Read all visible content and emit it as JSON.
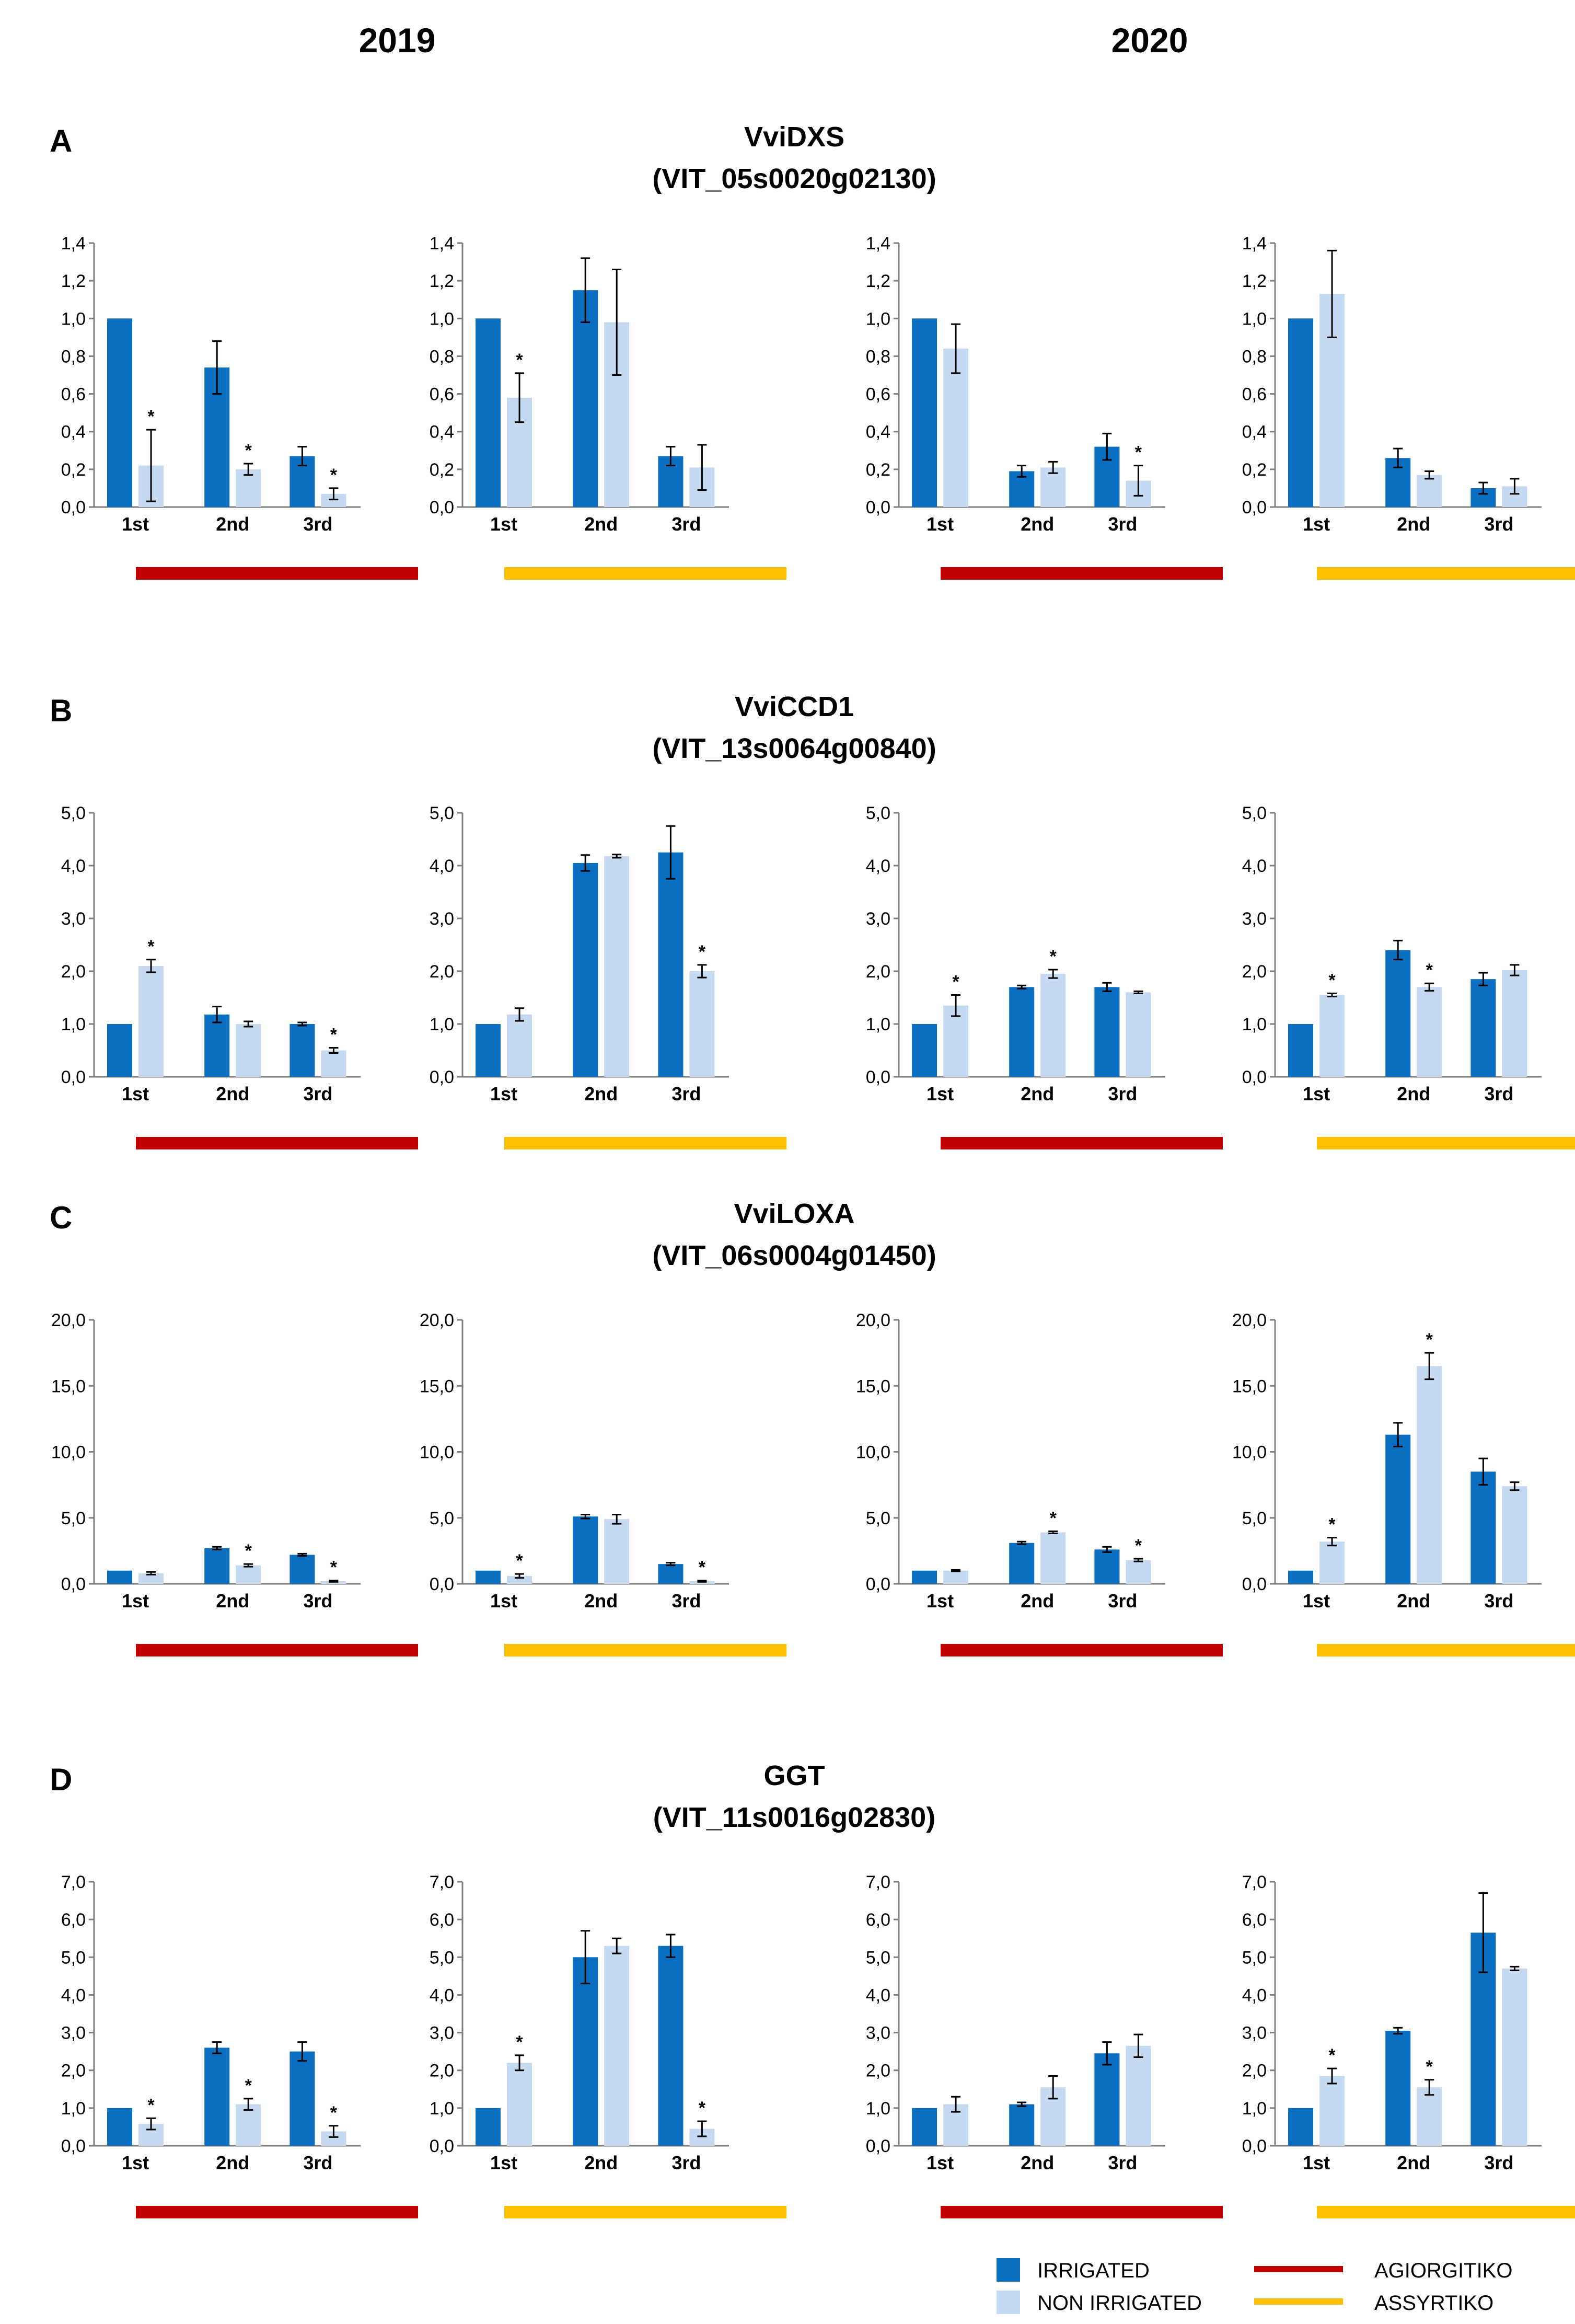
{
  "years": [
    "2019",
    "2020"
  ],
  "colors": {
    "irrigated": "#0a6ec1",
    "non_irrigated": "#c5d9f1",
    "agiorgitiko": "#c00000",
    "assyrtiko": "#ffc000",
    "axis": "#7f7f7f",
    "text": "#000000"
  },
  "legend": {
    "irrigated": "IRRIGATED",
    "non_irrigated": "NON IRRIGATED",
    "agiorgitiko": "AGIORGITIKO",
    "assyrtiko": "ASSYRTIKO"
  },
  "significance_marker": "*",
  "chart_data": [
    {
      "type": "bar",
      "panel": "A",
      "gene": "VviDXS",
      "gene_id": "(VIT_05s0020g02130)",
      "y_ticks": [
        "0,0",
        "0,2",
        "0,4",
        "0,6",
        "0,8",
        "1,0",
        "1,2",
        "1,4"
      ],
      "ylim": [
        0,
        1.4
      ],
      "categories": [
        "1st",
        "2nd",
        "3rd"
      ],
      "charts": [
        {
          "year": "2019",
          "cultivar": "AGIORGITIKO",
          "irrigated": [
            1.0,
            0.74,
            0.27
          ],
          "irrigated_err": [
            0,
            0.14,
            0.05
          ],
          "non_irrigated": [
            0.22,
            0.2,
            0.07
          ],
          "non_irrigated_err": [
            0.19,
            0.03,
            0.03
          ],
          "significant": [
            true,
            true,
            true
          ]
        },
        {
          "year": "2019",
          "cultivar": "ASSYRTIKO",
          "irrigated": [
            1.0,
            1.15,
            0.27
          ],
          "irrigated_err": [
            0,
            0.17,
            0.05
          ],
          "non_irrigated": [
            0.58,
            0.98,
            0.21
          ],
          "non_irrigated_err": [
            0.13,
            0.28,
            0.12
          ],
          "significant": [
            true,
            false,
            false
          ]
        },
        {
          "year": "2020",
          "cultivar": "AGIORGITIKO",
          "irrigated": [
            1.0,
            0.19,
            0.32
          ],
          "irrigated_err": [
            0,
            0.03,
            0.07
          ],
          "non_irrigated": [
            0.84,
            0.21,
            0.14
          ],
          "non_irrigated_err": [
            0.13,
            0.03,
            0.08
          ],
          "significant": [
            false,
            false,
            true
          ]
        },
        {
          "year": "2020",
          "cultivar": "ASSYRTIKO",
          "irrigated": [
            1.0,
            0.26,
            0.1
          ],
          "irrigated_err": [
            0,
            0.05,
            0.03
          ],
          "non_irrigated": [
            1.13,
            0.17,
            0.11
          ],
          "non_irrigated_err": [
            0.23,
            0.02,
            0.04
          ],
          "significant": [
            false,
            false,
            false
          ]
        }
      ]
    },
    {
      "type": "bar",
      "panel": "B",
      "gene": "VviCCD1",
      "gene_id": "(VIT_13s0064g00840)",
      "y_ticks": [
        "0,0",
        "1,0",
        "2,0",
        "3,0",
        "4,0",
        "5,0"
      ],
      "ylim": [
        0,
        5
      ],
      "categories": [
        "1st",
        "2nd",
        "3rd"
      ],
      "charts": [
        {
          "year": "2019",
          "cultivar": "AGIORGITIKO",
          "irrigated": [
            1.0,
            1.18,
            1.0
          ],
          "irrigated_err": [
            0,
            0.15,
            0.03
          ],
          "non_irrigated": [
            2.1,
            1.0,
            0.5
          ],
          "non_irrigated_err": [
            0.12,
            0.05,
            0.05
          ],
          "significant": [
            true,
            false,
            true
          ]
        },
        {
          "year": "2019",
          "cultivar": "ASSYRTIKO",
          "irrigated": [
            1.0,
            4.05,
            4.25
          ],
          "irrigated_err": [
            0,
            0.15,
            0.5
          ],
          "non_irrigated": [
            1.18,
            4.18,
            2.0
          ],
          "non_irrigated_err": [
            0.12,
            0.03,
            0.12
          ],
          "significant": [
            false,
            false,
            true
          ]
        },
        {
          "year": "2020",
          "cultivar": "AGIORGITIKO",
          "irrigated": [
            1.0,
            1.7,
            1.7
          ],
          "irrigated_err": [
            0,
            0.03,
            0.08
          ],
          "non_irrigated": [
            1.35,
            1.95,
            1.6
          ],
          "non_irrigated_err": [
            0.2,
            0.08,
            0.02
          ],
          "significant": [
            true,
            true,
            false
          ]
        },
        {
          "year": "2020",
          "cultivar": "ASSYRTIKO",
          "irrigated": [
            1.0,
            2.4,
            1.85
          ],
          "irrigated_err": [
            0,
            0.18,
            0.12
          ],
          "non_irrigated": [
            1.55,
            1.7,
            2.02
          ],
          "non_irrigated_err": [
            0.03,
            0.07,
            0.1
          ],
          "significant": [
            true,
            true,
            false
          ]
        }
      ]
    },
    {
      "type": "bar",
      "panel": "C",
      "gene": "VviLOXA",
      "gene_id": "(VIT_06s0004g01450)",
      "y_ticks": [
        "0,0",
        "5,0",
        "10,0",
        "15,0",
        "20,0"
      ],
      "ylim": [
        0,
        20
      ],
      "categories": [
        "1st",
        "2nd",
        "3rd"
      ],
      "charts": [
        {
          "year": "2019",
          "cultivar": "AGIORGITIKO",
          "irrigated": [
            1.0,
            2.7,
            2.2
          ],
          "irrigated_err": [
            0,
            0.1,
            0.08
          ],
          "non_irrigated": [
            0.8,
            1.4,
            0.2
          ],
          "non_irrigated_err": [
            0.1,
            0.1,
            0.05
          ],
          "significant": [
            false,
            true,
            true
          ]
        },
        {
          "year": "2019",
          "cultivar": "ASSYRTIKO",
          "irrigated": [
            1.0,
            5.1,
            1.5
          ],
          "irrigated_err": [
            0,
            0.15,
            0.1
          ],
          "non_irrigated": [
            0.6,
            4.9,
            0.2
          ],
          "non_irrigated_err": [
            0.15,
            0.35,
            0.05
          ],
          "significant": [
            true,
            false,
            true
          ]
        },
        {
          "year": "2020",
          "cultivar": "AGIORGITIKO",
          "irrigated": [
            1.0,
            3.1,
            2.6
          ],
          "irrigated_err": [
            0,
            0.1,
            0.2
          ],
          "non_irrigated": [
            1.0,
            3.9,
            1.8
          ],
          "non_irrigated_err": [
            0.05,
            0.08,
            0.1
          ],
          "significant": [
            false,
            true,
            true
          ]
        },
        {
          "year": "2020",
          "cultivar": "ASSYRTIKO",
          "irrigated": [
            1.0,
            11.3,
            8.5
          ],
          "irrigated_err": [
            0,
            0.9,
            1.0
          ],
          "non_irrigated": [
            3.2,
            16.5,
            7.4
          ],
          "non_irrigated_err": [
            0.3,
            1.0,
            0.3
          ],
          "significant": [
            true,
            true,
            false
          ]
        }
      ]
    },
    {
      "type": "bar",
      "panel": "D",
      "gene": "GGT",
      "gene_id": "(VIT_11s0016g02830)",
      "y_ticks": [
        "0,0",
        "1,0",
        "2,0",
        "3,0",
        "4,0",
        "5,0",
        "6,0",
        "7,0"
      ],
      "ylim": [
        0,
        7
      ],
      "categories": [
        "1st",
        "2nd",
        "3rd"
      ],
      "charts": [
        {
          "year": "2019",
          "cultivar": "AGIORGITIKO",
          "irrigated": [
            1.0,
            2.6,
            2.5
          ],
          "irrigated_err": [
            0,
            0.15,
            0.25
          ],
          "non_irrigated": [
            0.58,
            1.1,
            0.38
          ],
          "non_irrigated_err": [
            0.15,
            0.15,
            0.15
          ],
          "significant": [
            true,
            true,
            true
          ]
        },
        {
          "year": "2019",
          "cultivar": "ASSYRTIKO",
          "irrigated": [
            1.0,
            5.0,
            5.3
          ],
          "irrigated_err": [
            0,
            0.7,
            0.3
          ],
          "non_irrigated": [
            2.2,
            5.3,
            0.45
          ],
          "non_irrigated_err": [
            0.2,
            0.2,
            0.2
          ],
          "significant": [
            true,
            false,
            true
          ]
        },
        {
          "year": "2020",
          "cultivar": "AGIORGITIKO",
          "irrigated": [
            1.0,
            1.1,
            2.45
          ],
          "irrigated_err": [
            0,
            0.05,
            0.3
          ],
          "non_irrigated": [
            1.1,
            1.55,
            2.65
          ],
          "non_irrigated_err": [
            0.2,
            0.3,
            0.3
          ],
          "significant": [
            false,
            false,
            false
          ]
        },
        {
          "year": "2020",
          "cultivar": "ASSYRTIKO",
          "irrigated": [
            1.0,
            3.05,
            5.65
          ],
          "irrigated_err": [
            0,
            0.08,
            1.05
          ],
          "non_irrigated": [
            1.85,
            1.55,
            4.7
          ],
          "non_irrigated_err": [
            0.2,
            0.2,
            0.05
          ],
          "significant": [
            true,
            true,
            false
          ]
        }
      ]
    }
  ]
}
